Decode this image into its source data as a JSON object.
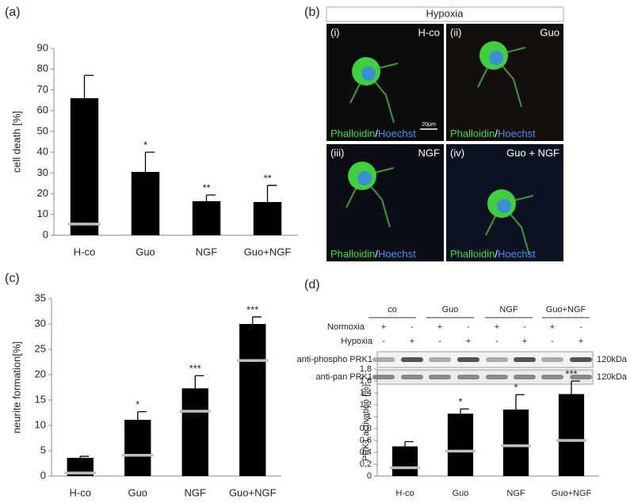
{
  "panels": [
    "(a)",
    "(b)",
    "(c)",
    "(d)"
  ],
  "micrographs": {
    "header": "Hypoxia",
    "scale_bar": "20µm",
    "stain_green": "Phalloidin",
    "separator": "/",
    "stain_blue": "Hoechst",
    "tiles": [
      {
        "index": "(i)",
        "label": "H-co"
      },
      {
        "index": "(ii)",
        "label": "Guo"
      },
      {
        "index": "(iii)",
        "label": "NGF"
      },
      {
        "index": "(iv)",
        "label": "Guo + NGF"
      }
    ]
  },
  "blot": {
    "groups": [
      "co",
      "Guo",
      "NGF",
      "Guo+NGF"
    ],
    "rows": [
      {
        "label": "Normoxia",
        "signs": [
          "+",
          "-",
          "+",
          "-",
          "+",
          "-",
          "+",
          "-"
        ]
      },
      {
        "label": "Hypoxia",
        "signs": [
          "-",
          "+",
          "-",
          "+",
          "-",
          "+",
          "-",
          "+"
        ]
      }
    ],
    "bands": [
      {
        "label": "anti-phospho PRK1",
        "size": "120kDa"
      },
      {
        "label": "anti-pan PRK1",
        "size": "120kDa"
      }
    ]
  },
  "chart_data": [
    {
      "type": "bar",
      "y_label": "cell death [%]",
      "categories": [
        "H-co",
        "Guo",
        "NGF",
        "Guo+NGF"
      ],
      "values": [
        66,
        30.5,
        16.4,
        16
      ],
      "errors": [
        11,
        9.5,
        3,
        8
      ],
      "color": "#000000",
      "reference_values": [
        5.4,
        null,
        null,
        null
      ],
      "reference_color": "#bfbfbf",
      "annotations": [
        null,
        "*",
        "**",
        "**"
      ],
      "ylim": [
        0,
        90
      ],
      "yticks": [
        0,
        10,
        20,
        30,
        40,
        50,
        60,
        70,
        80,
        90
      ]
    },
    {
      "type": "bar",
      "y_label": "neurite formation[%]",
      "categories": [
        "H-co",
        "Guo",
        "NGF",
        "Guo+NGF"
      ],
      "values": [
        3.6,
        11.1,
        17.3,
        30
      ],
      "errors": [
        0.3,
        1.6,
        2.5,
        1.4
      ],
      "color": "#000000",
      "reference_values": [
        0.6,
        4.1,
        12.8,
        22.8
      ],
      "reference_color": "#bfbfbf",
      "annotations": [
        null,
        "*",
        "***",
        "***"
      ],
      "ylim": [
        0,
        35
      ],
      "yticks": [
        0,
        5,
        10,
        15,
        20,
        25,
        30,
        35
      ]
    },
    {
      "type": "bar",
      "y_label": "PRK1 activation [%]",
      "categories": [
        "H-co",
        "Guo",
        "NGF",
        "Guo+NGF"
      ],
      "values": [
        0.5,
        1.05,
        1.12,
        1.38
      ],
      "errors": [
        0.08,
        0.08,
        0.25,
        0.22
      ],
      "color": "#000000",
      "reference_values": [
        0.14,
        0.42,
        0.51,
        0.6
      ],
      "reference_color": "#bfbfbf",
      "annotations": [
        null,
        "*",
        "*",
        "***"
      ],
      "ylim": [
        0,
        1.8
      ],
      "yticks": [
        0,
        {
          "value": 0.2,
          "label": "0,2"
        },
        {
          "value": 0.4,
          "label": "0,4"
        },
        {
          "value": 0.6,
          "label": "0,6"
        },
        {
          "value": 0.8,
          "label": "0,8"
        },
        1,
        {
          "value": 1.2,
          "label": "1,2"
        },
        {
          "value": 1.4,
          "label": "1,4"
        },
        {
          "value": 1.6,
          "label": "1,6"
        },
        {
          "value": 1.8,
          "label": "1,8"
        }
      ]
    }
  ]
}
